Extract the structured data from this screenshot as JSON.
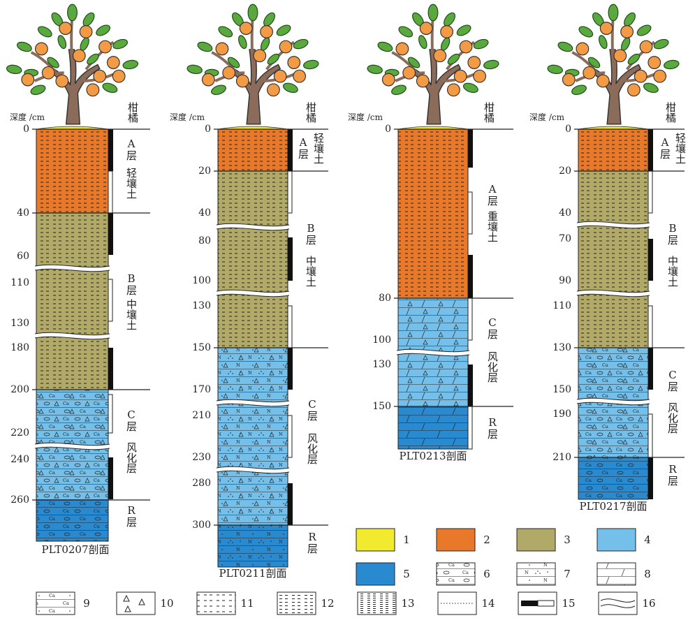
{
  "profiles": [
    {
      "depth_header": "深度 /cm",
      "crop": "柑橘",
      "ticks": [
        "0",
        "40",
        "60",
        "110",
        "130",
        "180",
        "200",
        "220",
        "240",
        "260"
      ],
      "layers": [
        "A层",
        "轻壤土",
        "B层",
        "中壤土",
        "C层",
        "风化层",
        "R层"
      ],
      "name": "PLT0207剖面"
    },
    {
      "depth_header": "深度 /cm",
      "crop": "柑橘",
      "ticks": [
        "0",
        "20",
        "40",
        "80",
        "100",
        "130",
        "150",
        "170",
        "210",
        "230",
        "280",
        "300"
      ],
      "layers": [
        "A层",
        "轻壤土",
        "B层",
        "中壤土",
        "C层",
        "风化层",
        "R层"
      ],
      "name": "PLT0211剖面"
    },
    {
      "depth_header": "深度 /cm",
      "crop": "柑橘",
      "ticks": [
        "0",
        "80",
        "100",
        "130",
        "150"
      ],
      "layers": [
        "A层",
        "重壤土",
        "C层",
        "风化层",
        "R层"
      ],
      "name": "PLT0213剖面"
    },
    {
      "depth_header": "深度 /cm",
      "crop": "柑橘",
      "ticks": [
        "0",
        "20",
        "40",
        "70",
        "90",
        "110",
        "130",
        "150",
        "190",
        "210"
      ],
      "layers": [
        "A层",
        "轻壤土",
        "B层",
        "中壤土",
        "C层",
        "风化层",
        "R层"
      ],
      "name": "PLT0217剖面"
    }
  ],
  "symbols": {
    "ca": "Ca",
    "n": "N"
  },
  "legend": [
    "1",
    "2",
    "3",
    "4",
    "5",
    "6",
    "7",
    "8",
    "9",
    "10",
    "11",
    "12",
    "13",
    "14",
    "15",
    "16"
  ]
}
